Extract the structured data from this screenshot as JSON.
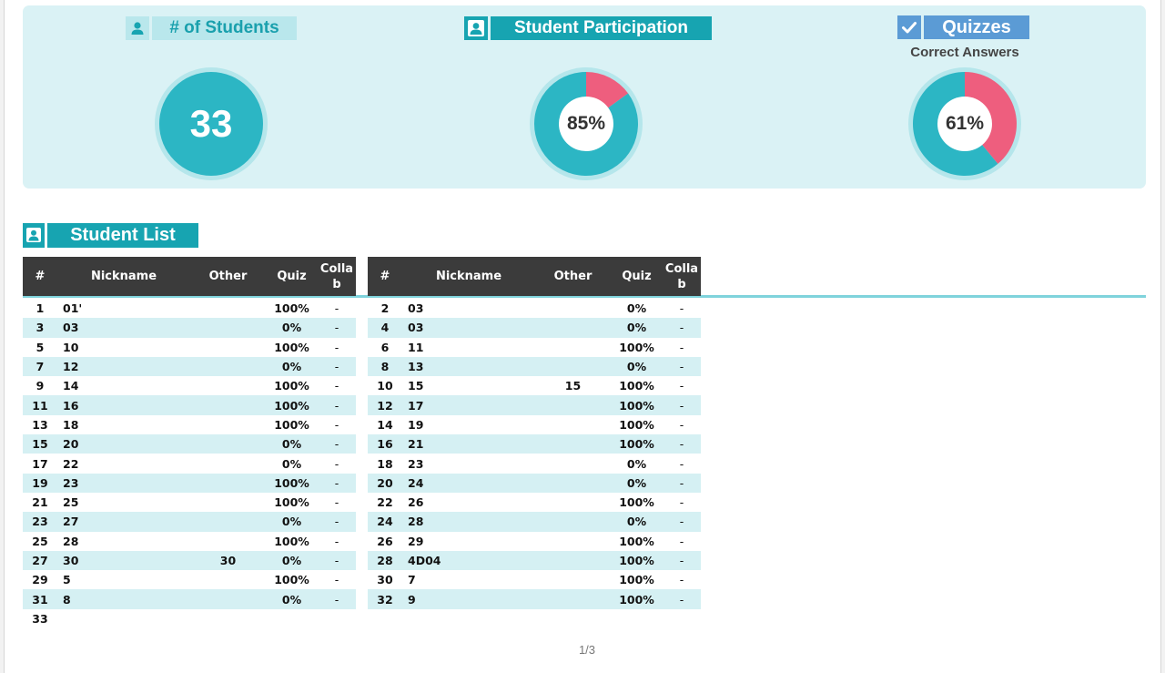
{
  "summary": {
    "students": {
      "title": "# of Students",
      "icon": "person-icon",
      "count": "33"
    },
    "participation": {
      "title": "Student Participation",
      "icon": "person-icon",
      "value_label": "85%",
      "value": 0.85,
      "colors": {
        "main": "#2cb6c4",
        "rest": "#ee5e7e",
        "ring": "#b5e6eb"
      }
    },
    "quizzes": {
      "title": "Quizzes",
      "icon": "check-icon",
      "subtitle": "Correct Answers",
      "value_label": "61%",
      "value": 0.61,
      "colors": {
        "main": "#2cb6c4",
        "rest": "#ee5e7e",
        "ring": "#b5e6eb"
      }
    }
  },
  "student_list": {
    "title": "Student List",
    "icon": "person-icon",
    "columns": {
      "num": "#",
      "nickname": "Nickname",
      "other": "Other",
      "quiz": "Quiz",
      "collab": "Colla b"
    },
    "left_rows": [
      {
        "num": "1",
        "nick": "01'",
        "other": "",
        "quiz": "100%",
        "collab": "-"
      },
      {
        "num": "3",
        "nick": "03",
        "other": "",
        "quiz": "0%",
        "collab": "-"
      },
      {
        "num": "5",
        "nick": "10",
        "other": "",
        "quiz": "100%",
        "collab": "-"
      },
      {
        "num": "7",
        "nick": "12",
        "other": "",
        "quiz": "0%",
        "collab": "-"
      },
      {
        "num": "9",
        "nick": "14",
        "other": "",
        "quiz": "100%",
        "collab": "-"
      },
      {
        "num": "11",
        "nick": "16",
        "other": "",
        "quiz": "100%",
        "collab": "-"
      },
      {
        "num": "13",
        "nick": "18",
        "other": "",
        "quiz": "100%",
        "collab": "-"
      },
      {
        "num": "15",
        "nick": "20",
        "other": "",
        "quiz": "0%",
        "collab": "-"
      },
      {
        "num": "17",
        "nick": "22",
        "other": "",
        "quiz": "0%",
        "collab": "-"
      },
      {
        "num": "19",
        "nick": "23",
        "other": "",
        "quiz": "100%",
        "collab": "-"
      },
      {
        "num": "21",
        "nick": "25",
        "other": "",
        "quiz": "100%",
        "collab": "-"
      },
      {
        "num": "23",
        "nick": "27",
        "other": "",
        "quiz": "0%",
        "collab": "-"
      },
      {
        "num": "25",
        "nick": "28",
        "other": "",
        "quiz": "100%",
        "collab": "-"
      },
      {
        "num": "27",
        "nick": "30",
        "other": "30",
        "quiz": "0%",
        "collab": "-"
      },
      {
        "num": "29",
        "nick": "5",
        "other": "",
        "quiz": "100%",
        "collab": "-"
      },
      {
        "num": "31",
        "nick": "8",
        "other": "",
        "quiz": "0%",
        "collab": "-"
      },
      {
        "num": "33",
        "nick": "",
        "other": "",
        "quiz": "",
        "collab": ""
      }
    ],
    "right_rows": [
      {
        "num": "2",
        "nick": "03",
        "other": "",
        "quiz": "0%",
        "collab": "-"
      },
      {
        "num": "4",
        "nick": "03",
        "other": "",
        "quiz": "0%",
        "collab": "-"
      },
      {
        "num": "6",
        "nick": "11",
        "other": "",
        "quiz": "100%",
        "collab": "-"
      },
      {
        "num": "8",
        "nick": "13",
        "other": "",
        "quiz": "0%",
        "collab": "-"
      },
      {
        "num": "10",
        "nick": "15",
        "other": "15",
        "quiz": "100%",
        "collab": "-"
      },
      {
        "num": "12",
        "nick": "17",
        "other": "",
        "quiz": "100%",
        "collab": "-"
      },
      {
        "num": "14",
        "nick": "19",
        "other": "",
        "quiz": "100%",
        "collab": "-"
      },
      {
        "num": "16",
        "nick": "21",
        "other": "",
        "quiz": "100%",
        "collab": "-"
      },
      {
        "num": "18",
        "nick": "23",
        "other": "",
        "quiz": "0%",
        "collab": "-"
      },
      {
        "num": "20",
        "nick": "24",
        "other": "",
        "quiz": "0%",
        "collab": "-"
      },
      {
        "num": "22",
        "nick": "26",
        "other": "",
        "quiz": "100%",
        "collab": "-"
      },
      {
        "num": "24",
        "nick": "28",
        "other": "",
        "quiz": "0%",
        "collab": "-"
      },
      {
        "num": "26",
        "nick": "29",
        "other": "",
        "quiz": "100%",
        "collab": "-"
      },
      {
        "num": "28",
        "nick": "4D04",
        "other": "",
        "quiz": "100%",
        "collab": "-"
      },
      {
        "num": "30",
        "nick": "7",
        "other": "",
        "quiz": "100%",
        "collab": "-"
      },
      {
        "num": "32",
        "nick": "9",
        "other": "",
        "quiz": "100%",
        "collab": "-"
      }
    ]
  },
  "pager": {
    "label": "1/3"
  }
}
